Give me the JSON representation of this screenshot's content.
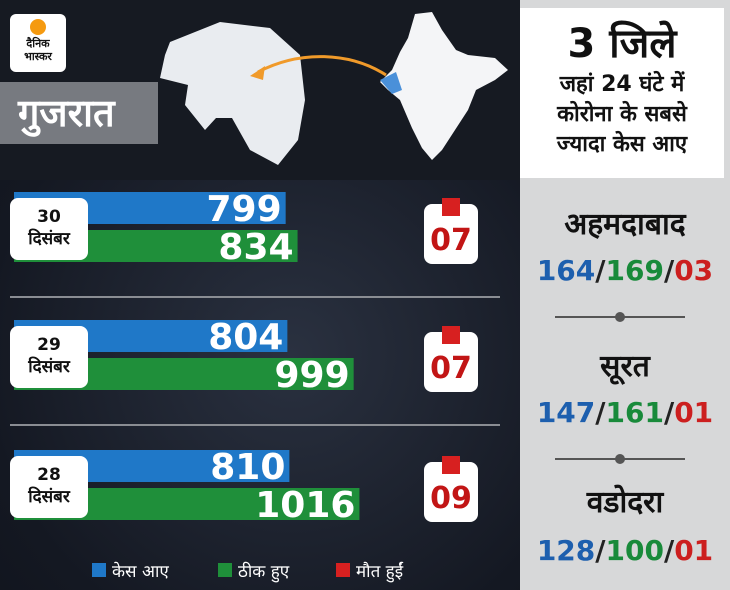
{
  "brand": {
    "line1": "दैनिक",
    "line2": "भास्कर"
  },
  "state": "गुजरात",
  "panel": {
    "title_big": "3 जिले",
    "title_lines": [
      "जहां 24 घंटे में",
      "कोरोना के सबसे",
      "ज्यादा केस आए"
    ]
  },
  "cities": [
    {
      "name": "अहमदाबाद",
      "cases": "164",
      "recovered": "169",
      "deaths": "03"
    },
    {
      "name": "सूरत",
      "cases": "147",
      "recovered": "161",
      "deaths": "01"
    },
    {
      "name": "वडोदरा",
      "cases": "128",
      "recovered": "100",
      "deaths": "01"
    }
  ],
  "colors": {
    "cases": "#1f78c8",
    "recovered": "#1f8f3a",
    "deaths": "#d72020"
  },
  "legend": {
    "cases": "केस आए",
    "recovered": "ठीक हुए",
    "deaths": "मौत हुईं"
  },
  "chart_data": {
    "type": "bar",
    "orientation": "horizontal",
    "categories": [
      {
        "day": "30",
        "month": "दिसंबर"
      },
      {
        "day": "29",
        "month": "दिसंबर"
      },
      {
        "day": "28",
        "month": "दिसंबर"
      }
    ],
    "series": [
      {
        "name": "केस आए",
        "values": [
          799,
          804,
          810
        ],
        "labels": [
          "799",
          "804",
          "810"
        ]
      },
      {
        "name": "ठीक हुए",
        "values": [
          834,
          999,
          1016
        ],
        "labels": [
          "834",
          "999",
          "1016"
        ]
      },
      {
        "name": "मौत हुईं",
        "values": [
          7,
          7,
          9
        ],
        "labels": [
          "07",
          "07",
          "09"
        ]
      }
    ],
    "legend_position": "bottom"
  }
}
